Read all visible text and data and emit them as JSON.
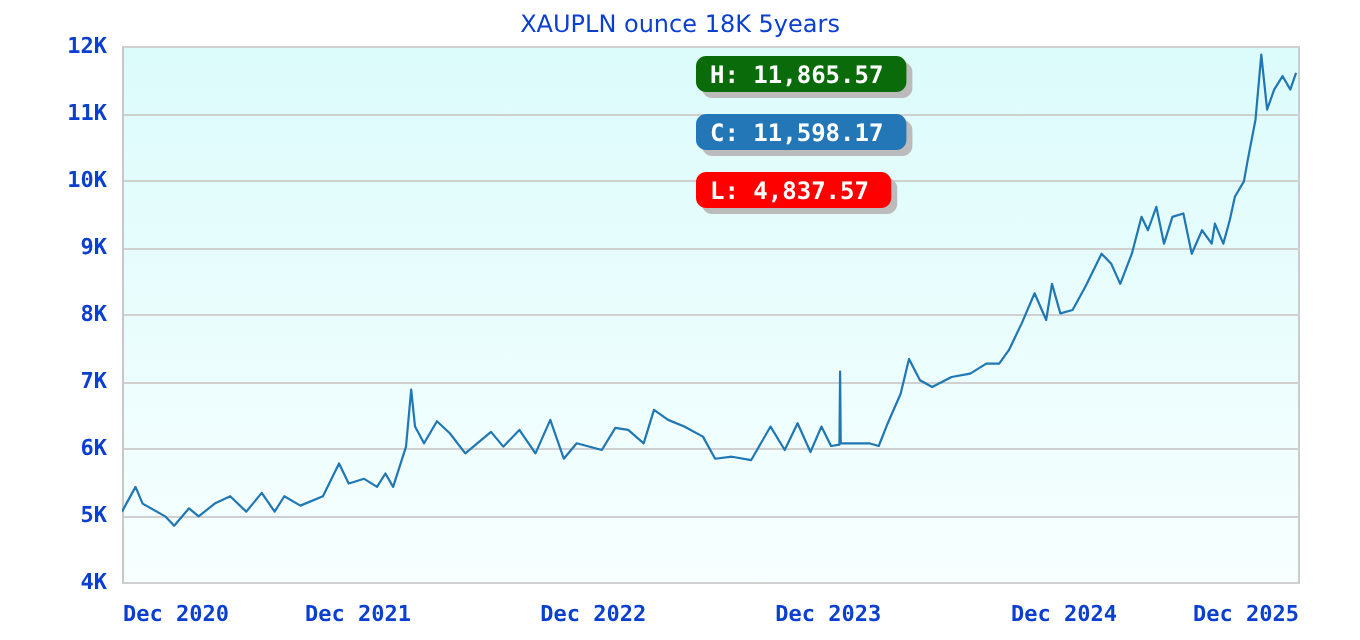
{
  "chart_data": {
    "type": "line",
    "title": "XAUPLN ounce 18K 5years",
    "x": [
      "2020-12-01",
      "2020-12-22",
      "2021-01-02",
      "2021-02-06",
      "2021-02-20",
      "2021-03-15",
      "2021-03-30",
      "2021-04-24",
      "2021-05-18",
      "2021-06-12",
      "2021-07-06",
      "2021-07-26",
      "2021-08-10",
      "2021-09-04",
      "2021-10-09",
      "2021-11-03",
      "2021-11-18",
      "2021-12-12",
      "2022-01-01",
      "2022-01-14",
      "2022-01-26",
      "2022-02-15",
      "2022-02-23",
      "2022-03-01",
      "2022-03-15",
      "2022-04-04",
      "2022-04-24",
      "2022-05-18",
      "2022-06-27",
      "2022-07-16",
      "2022-08-10",
      "2022-09-04",
      "2022-09-27",
      "2022-10-18",
      "2022-11-07",
      "2022-12-16",
      "2023-01-06",
      "2023-01-26",
      "2023-02-19",
      "2023-03-07",
      "2023-03-29",
      "2023-04-23",
      "2023-05-22",
      "2023-06-10",
      "2023-07-06",
      "2023-08-05",
      "2023-09-04",
      "2023-09-26",
      "2023-10-16",
      "2023-11-05",
      "2023-11-22",
      "2023-12-07",
      "2023-12-20",
      "2023-12-21",
      "2023-12-22",
      "2024-02-04",
      "2024-02-19",
      "2024-03-04",
      "2024-03-24",
      "2024-04-06",
      "2024-04-23",
      "2024-05-12",
      "2024-06-11",
      "2024-07-10",
      "2024-08-04",
      "2024-08-24",
      "2024-09-08",
      "2024-09-28",
      "2024-10-18",
      "2024-11-05",
      "2024-11-14",
      "2024-11-27",
      "2024-12-16",
      "2025-01-05",
      "2025-01-30",
      "2025-02-14",
      "2025-02-28",
      "2025-03-18",
      "2025-04-02",
      "2025-04-12",
      "2025-04-25",
      "2025-05-07",
      "2025-05-20",
      "2025-06-06",
      "2025-06-19",
      "2025-07-05",
      "2025-07-20",
      "2025-07-25",
      "2025-08-07",
      "2025-08-17",
      "2025-08-25",
      "2025-09-08",
      "2025-09-14",
      "2025-09-26",
      "2025-10-05",
      "2025-10-14",
      "2025-10-25",
      "2025-11-07",
      "2025-11-19",
      "2025-11-28"
    ],
    "series": [
      {
        "color": "#1f77b4",
        "values": [
          5050,
          5420,
          5170,
          4980,
          4840,
          5100,
          4980,
          5170,
          5280,
          5050,
          5330,
          5050,
          5280,
          5140,
          5280,
          5770,
          5470,
          5540,
          5420,
          5620,
          5420,
          6020,
          6870,
          6320,
          6070,
          6400,
          6220,
          5920,
          6240,
          6020,
          6270,
          5920,
          6420,
          5840,
          6070,
          5970,
          6300,
          6270,
          6070,
          6570,
          6420,
          6320,
          6170,
          5840,
          5870,
          5820,
          6320,
          5970,
          6370,
          5940,
          6320,
          6030,
          6050,
          7140,
          6070,
          6070,
          6030,
          6370,
          6810,
          7330,
          7010,
          6910,
          7060,
          7110,
          7260,
          7260,
          7460,
          7860,
          8310,
          7910,
          8450,
          8010,
          8060,
          8410,
          8900,
          8750,
          8450,
          8900,
          9450,
          9250,
          9600,
          9050,
          9450,
          9500,
          8900,
          9250,
          9050,
          9350,
          9050,
          9400,
          9750,
          9980,
          10300,
          10900,
          11870,
          11050,
          11350,
          11550,
          11350,
          11600
        ]
      }
    ],
    "xlim": [
      "2020-12-01",
      "2025-12-01"
    ],
    "xticks": [
      {
        "value": "2020-12-01",
        "label": "Dec 2020"
      },
      {
        "value": "2021-12-01",
        "label": "Dec 2021"
      },
      {
        "value": "2022-12-01",
        "label": "Dec 2022"
      },
      {
        "value": "2023-12-01",
        "label": "Dec 2023"
      },
      {
        "value": "2024-12-01",
        "label": "Dec 2024"
      },
      {
        "value": "2025-12-01",
        "label": "Dec 2025"
      }
    ],
    "ylim": [
      4000,
      12000
    ],
    "yticks": [
      {
        "value": 4000,
        "label": "4K"
      },
      {
        "value": 5000,
        "label": "5K"
      },
      {
        "value": 6000,
        "label": "6K"
      },
      {
        "value": 7000,
        "label": "7K"
      },
      {
        "value": 8000,
        "label": "8K"
      },
      {
        "value": 9000,
        "label": "9K"
      },
      {
        "value": 10000,
        "label": "10K"
      },
      {
        "value": 11000,
        "label": "11K"
      },
      {
        "value": 12000,
        "label": "12K"
      }
    ],
    "grid": "y",
    "annotations": [
      "H: 11,865.57",
      "C: 11,598.17",
      "L: 4,837.57"
    ]
  }
}
